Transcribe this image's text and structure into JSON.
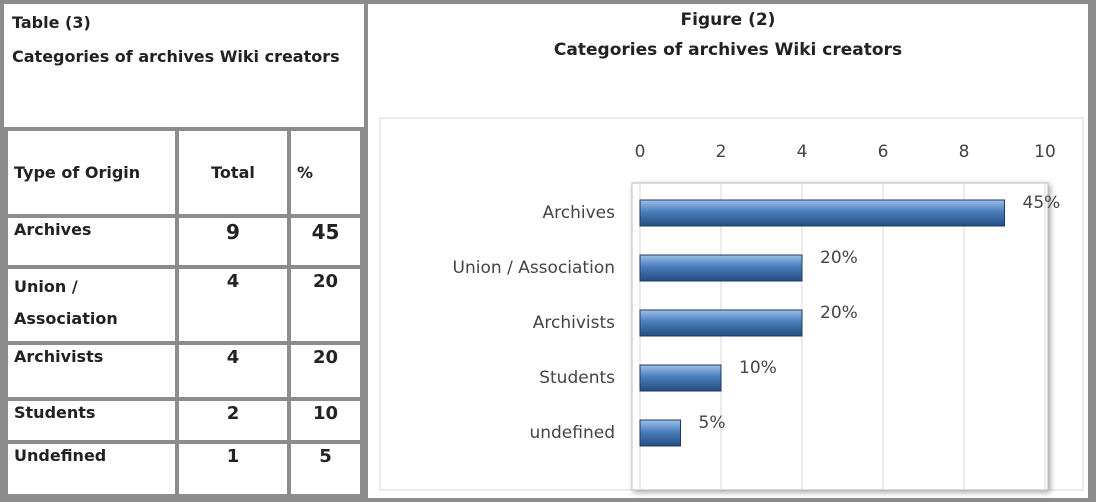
{
  "table": {
    "title": "Table (3)",
    "subtitle": "Categories of archives Wiki creators",
    "header": [
      "Type of Origin",
      "Total",
      "%"
    ],
    "rows": [
      [
        "Archives",
        9,
        45
      ],
      [
        "Union / Association",
        4,
        20
      ],
      [
        "Archivists",
        4,
        20
      ],
      [
        "Students",
        2,
        10
      ],
      [
        "Undefined",
        1,
        5
      ]
    ]
  },
  "chart_data": {
    "type": "hbar",
    "title": "Figure (2)",
    "subtitle": "Categories of archives Wiki creators",
    "categories": [
      "Archives",
      "Union / Association",
      "Archivists",
      "Students",
      "undefined"
    ],
    "values": [
      9,
      4,
      4,
      2,
      1
    ],
    "data_labels": [
      "45%",
      "20%",
      "20%",
      "10%",
      "5%"
    ],
    "color": "#4a7ebb",
    "xlim": [
      0,
      10
    ],
    "xticks": [
      0,
      2,
      4,
      6,
      8,
      10
    ],
    "grid": true
  }
}
